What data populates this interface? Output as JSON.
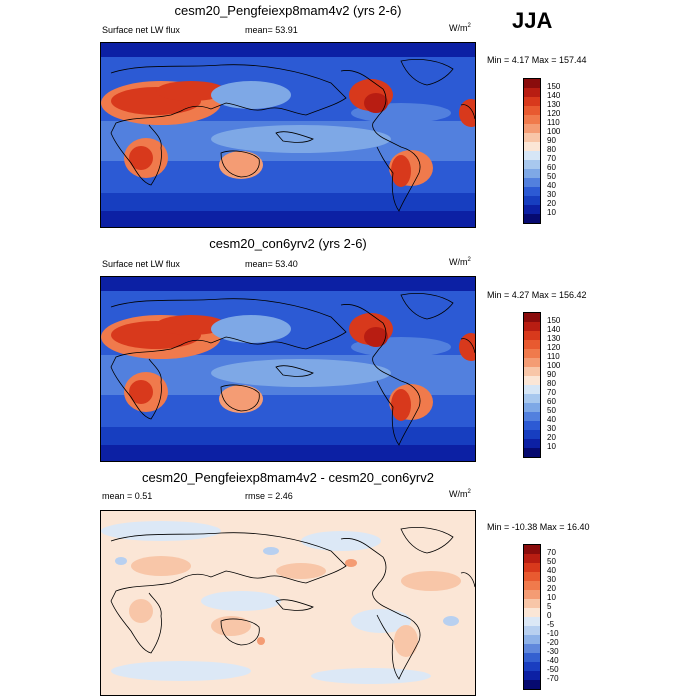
{
  "season": "JJA",
  "panels": [
    {
      "title": "cesm20_Pengfeiexp8mam4v2 (yrs 2-6)",
      "left_label": "Surface net LW flux",
      "center_label": "mean=  53.91",
      "units": "W/m",
      "units_sup": "2",
      "minmax": "Min =  4.17 Max = 157.44",
      "colorbar_labels": [
        "150",
        "140",
        "130",
        "120",
        "110",
        "100",
        "90",
        "80",
        "70",
        "60",
        "50",
        "40",
        "30",
        "20",
        "10"
      ],
      "colorbar_colors": [
        "#8a0c0c",
        "#b81d12",
        "#d8391c",
        "#e85a30",
        "#f07a4c",
        "#f49c74",
        "#f8c6a8",
        "#fbe6d6",
        "#d6e6f6",
        "#a8c8ee",
        "#7ea8e6",
        "#5280de",
        "#2c5ad4",
        "#173ec0",
        "#0c20a4",
        "#060a70"
      ]
    },
    {
      "title": "cesm20_con6yrv2 (yrs 2-6)",
      "left_label": "Surface net LW flux",
      "center_label": "mean=  53.40",
      "units": "W/m",
      "units_sup": "2",
      "minmax": "Min =  4.27 Max = 156.42",
      "colorbar_labels": [
        "150",
        "140",
        "130",
        "120",
        "110",
        "100",
        "90",
        "80",
        "70",
        "60",
        "50",
        "40",
        "30",
        "20",
        "10"
      ],
      "colorbar_colors": [
        "#8a0c0c",
        "#b81d12",
        "#d8391c",
        "#e85a30",
        "#f07a4c",
        "#f49c74",
        "#f8c6a8",
        "#fbe6d6",
        "#d6e6f6",
        "#a8c8ee",
        "#7ea8e6",
        "#5280de",
        "#2c5ad4",
        "#173ec0",
        "#0c20a4",
        "#060a70"
      ]
    },
    {
      "title": "cesm20_Pengfeiexp8mam4v2 - cesm20_con6yrv2",
      "left_label": "mean =   0.51",
      "center_label": "rmse =   2.46",
      "units": "W/m",
      "units_sup": "2",
      "minmax": "Min = -10.38 Max =  16.40",
      "colorbar_labels": [
        "70",
        "50",
        "40",
        "30",
        "20",
        "10",
        "5",
        "0",
        "-5",
        "-10",
        "-20",
        "-30",
        "-40",
        "-50",
        "-70"
      ],
      "colorbar_colors": [
        "#8a0c0c",
        "#b81d12",
        "#d8391c",
        "#e85a30",
        "#f07a4c",
        "#f49c74",
        "#f8c6a8",
        "#fbe6d6",
        "#dce8f6",
        "#b8d0f0",
        "#8eb2e8",
        "#6088dc",
        "#3460d0",
        "#1a3ec0",
        "#0c20a4",
        "#060a70"
      ]
    }
  ]
}
